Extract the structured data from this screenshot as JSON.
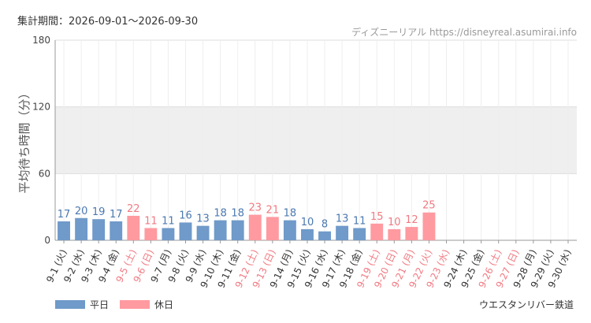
{
  "header": {
    "period_label": "集計期間：2026-09-01～2026-09-30",
    "source_label": "ディズニーリアル https://disneyreal.asumirai.info"
  },
  "footer": {
    "attraction": "ウエスタンリバー鉄道"
  },
  "colors": {
    "weekday": "#6f9ac9",
    "holiday": "#ff9aa0",
    "weekday_label": "#4a78b0",
    "holiday_label": "#f07a82",
    "band": "#efefef"
  },
  "chart_data": {
    "type": "bar",
    "ylabel": "平均待ち時間（分）",
    "ylim": [
      0,
      180
    ],
    "yticks": [
      0,
      60,
      120,
      180
    ],
    "shaded_band": [
      60,
      120
    ],
    "grid": true,
    "legend_position": "bottom-left",
    "legend": [
      {
        "name": "平日",
        "key": "weekday"
      },
      {
        "name": "休日",
        "key": "holiday"
      }
    ],
    "categories": [
      "9-1 (火)",
      "9-2 (水)",
      "9-3 (木)",
      "9-4 (金)",
      "9-5 (土)",
      "9-6 (日)",
      "9-7 (月)",
      "9-8 (火)",
      "9-9 (水)",
      "9-10 (木)",
      "9-11 (金)",
      "9-12 (土)",
      "9-13 (日)",
      "9-14 (月)",
      "9-15 (火)",
      "9-16 (水)",
      "9-17 (木)",
      "9-18 (金)",
      "9-19 (土)",
      "9-20 (日)",
      "9-21 (月)",
      "9-22 (火)",
      "9-23 (水)",
      "9-24 (木)",
      "9-25 (金)",
      "9-26 (土)",
      "9-27 (日)",
      "9-28 (月)",
      "9-29 (火)",
      "9-30 (水)"
    ],
    "values": [
      17,
      20,
      19,
      17,
      22,
      11,
      11,
      16,
      13,
      18,
      18,
      23,
      21,
      18,
      10,
      8,
      13,
      11,
      15,
      10,
      12,
      25,
      null,
      null,
      null,
      null,
      null,
      null,
      null,
      null
    ],
    "day_type": [
      "weekday",
      "weekday",
      "weekday",
      "weekday",
      "holiday",
      "holiday",
      "weekday",
      "weekday",
      "weekday",
      "weekday",
      "weekday",
      "holiday",
      "holiday",
      "weekday",
      "weekday",
      "weekday",
      "weekday",
      "weekday",
      "holiday",
      "holiday",
      "holiday",
      "holiday",
      "holiday",
      "weekday",
      "weekday",
      "holiday",
      "holiday",
      "weekday",
      "weekday",
      "weekday"
    ]
  }
}
